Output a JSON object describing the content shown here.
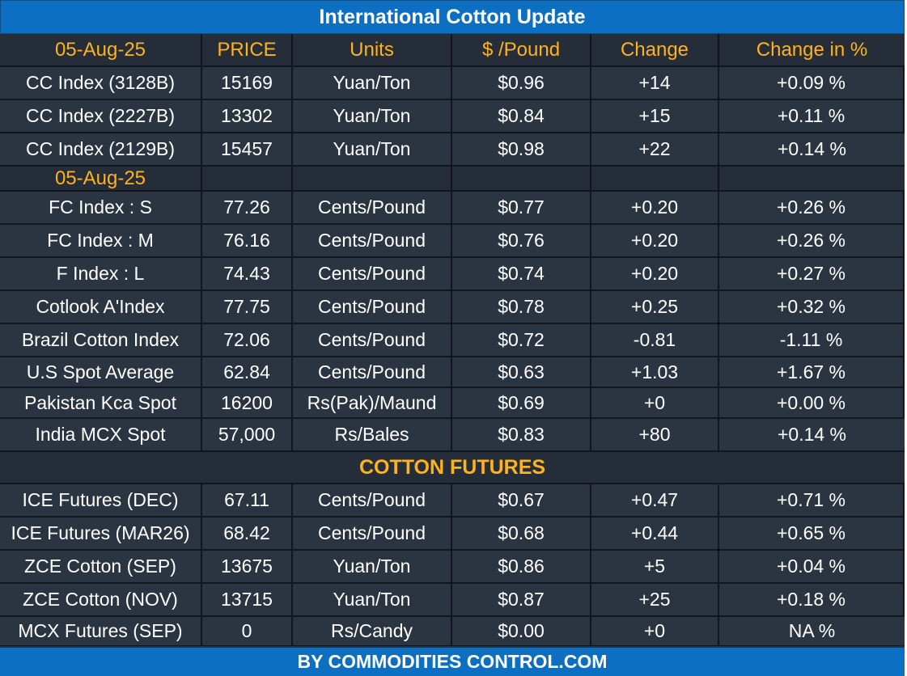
{
  "title": "International Cotton Update",
  "header": [
    "05-Aug-25",
    "PRICE",
    "Units",
    "$ /Pound",
    "Change",
    "Change in %"
  ],
  "cc_rows": [
    [
      "CC Index (3128B)",
      "15169",
      "Yuan/Ton",
      "$0.96",
      "+14",
      "+0.09 %"
    ],
    [
      "CC Index (2227B)",
      "13302",
      "Yuan/Ton",
      "$0.84",
      "+15",
      "+0.11 %"
    ],
    [
      "CC Index (2129B)",
      "15457",
      "Yuan/Ton",
      "$0.98",
      "+22",
      "+0.14 %"
    ]
  ],
  "section2_date": "05-Aug-25",
  "index_rows": [
    [
      "FC Index : S",
      "77.26",
      "Cents/Pound",
      "$0.77",
      "+0.20",
      "+0.26 %"
    ],
    [
      "FC Index : M",
      "76.16",
      "Cents/Pound",
      "$0.76",
      "+0.20",
      "+0.26 %"
    ],
    [
      "F Index : L",
      "74.43",
      "Cents/Pound",
      "$0.74",
      "+0.20",
      "+0.27 %"
    ],
    [
      "Cotlook A'Index",
      "77.75",
      "Cents/Pound",
      "$0.78",
      "+0.25",
      "+0.32 %"
    ],
    [
      "Brazil Cotton Index",
      "72.06",
      "Cents/Pound",
      "$0.72",
      "-0.81",
      "-1.11 %"
    ],
    [
      "U.S Spot Average",
      "62.84",
      "Cents/Pound",
      "$0.63",
      "+1.03",
      "+1.67 %"
    ],
    [
      "Pakistan Kca Spot",
      "16200",
      "Rs(Pak)/Maund",
      "$0.69",
      "+0",
      "+0.00 %"
    ],
    [
      "India MCX Spot",
      "57,000",
      "Rs/Bales",
      "$0.83",
      "+80",
      "+0.14 %"
    ]
  ],
  "futures_title": "COTTON FUTURES",
  "futures_rows": [
    [
      "ICE Futures (DEC)",
      "67.11",
      "Cents/Pound",
      "$0.67",
      "+0.47",
      "+0.71 %"
    ],
    [
      "ICE Futures (MAR26)",
      "68.42",
      "Cents/Pound",
      "$0.68",
      "+0.44",
      "+0.65 %"
    ],
    [
      "ZCE Cotton (SEP)",
      "13675",
      "Yuan/Ton",
      "$0.86",
      "+5",
      "+0.04 %"
    ],
    [
      "ZCE Cotton (NOV)",
      "13715",
      "Yuan/Ton",
      "$0.87",
      "+25",
      "+0.18 %"
    ],
    [
      "MCX Futures (SEP)",
      "0",
      "Rs/Candy",
      "$0.00",
      "+0",
      "NA %"
    ]
  ],
  "footer": "BY  COMMODITIES CONTROL.COM"
}
